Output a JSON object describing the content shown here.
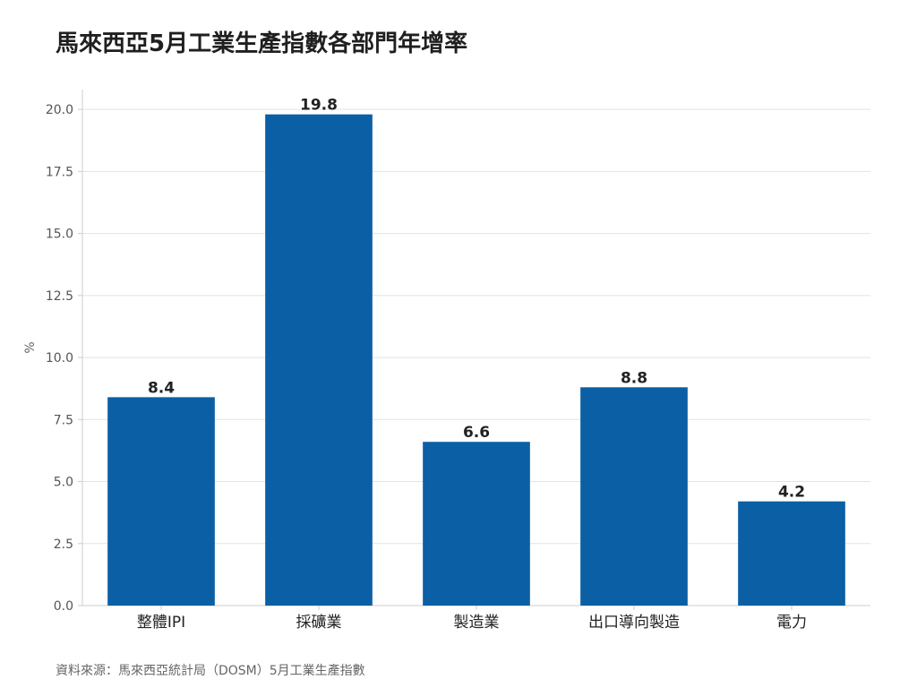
{
  "chart_data": {
    "type": "bar",
    "title": "馬來西亞5月工業生產指數各部門年增率",
    "ylabel": "%",
    "xlabel": "",
    "categories": [
      "整體IPI",
      "採礦業",
      "製造業",
      "出口導向製造",
      "電力"
    ],
    "values": [
      8.4,
      19.8,
      6.6,
      8.8,
      4.2
    ],
    "value_labels": [
      "8.4",
      "19.8",
      "6.6",
      "8.8",
      "4.2"
    ],
    "ylim": [
      0,
      20.8
    ],
    "yticks": [
      0,
      2.5,
      5,
      7.5,
      10,
      12.5,
      15,
      17.5,
      20
    ],
    "ytick_labels": [
      "0.0",
      "2.5",
      "5.0",
      "7.5",
      "10.0",
      "12.5",
      "15.0",
      "17.5",
      "20.0"
    ],
    "grid": true,
    "bar_color": "#0b5fa5",
    "source": "資料來源：馬來西亞統計局（DOSM）5月工業生產指數"
  }
}
